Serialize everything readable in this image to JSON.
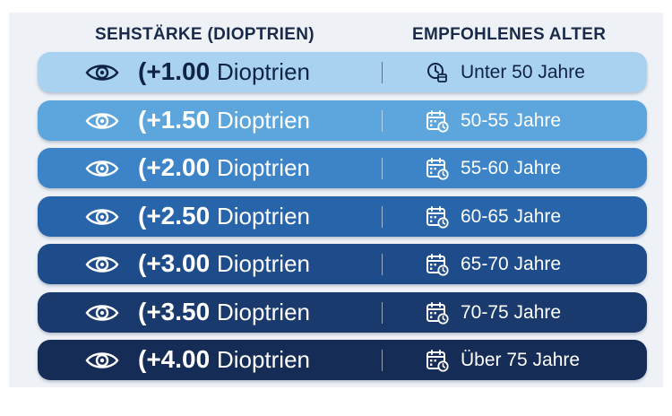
{
  "header": {
    "left": "SEHSTÄRKE (DIOPTRIEN)",
    "right": "EMPFOHLENES ALTER"
  },
  "rows": [
    {
      "value": "(+1.00",
      "unit": "Dioptrien",
      "age": "Unter 50 Jahre",
      "age_icon": "clock-calendar-icon",
      "bg": "#a9d2f0",
      "fg": "#0f2444"
    },
    {
      "value": "(+1.50",
      "unit": "Dioptrien",
      "age": "50-55 Jahre",
      "age_icon": "calendar-clock-icon",
      "bg": "#5da5dd",
      "fg": "#ffffff"
    },
    {
      "value": "(+2.00",
      "unit": "Dioptrien",
      "age": "55-60 Jahre",
      "age_icon": "calendar-clock-icon",
      "bg": "#3c84c7",
      "fg": "#ffffff"
    },
    {
      "value": "(+2.50",
      "unit": "Dioptrien",
      "age": "60-65 Jahre",
      "age_icon": "calendar-clock-icon",
      "bg": "#2864a9",
      "fg": "#ffffff"
    },
    {
      "value": "(+3.00",
      "unit": "Dioptrien",
      "age": "65-70 Jahre",
      "age_icon": "calendar-clock-icon",
      "bg": "#1e4b8a",
      "fg": "#ffffff"
    },
    {
      "value": "(+3.50",
      "unit": "Dioptrien",
      "age": "70-75 Jahre",
      "age_icon": "calendar-clock-icon",
      "bg": "#1a3a6e",
      "fg": "#ffffff"
    },
    {
      "value": "(+4.00",
      "unit": "Dioptrien",
      "age": "Über 75 Jahre",
      "age_icon": "calendar-clock-icon",
      "bg": "#142c56",
      "fg": "#ffffff"
    }
  ]
}
